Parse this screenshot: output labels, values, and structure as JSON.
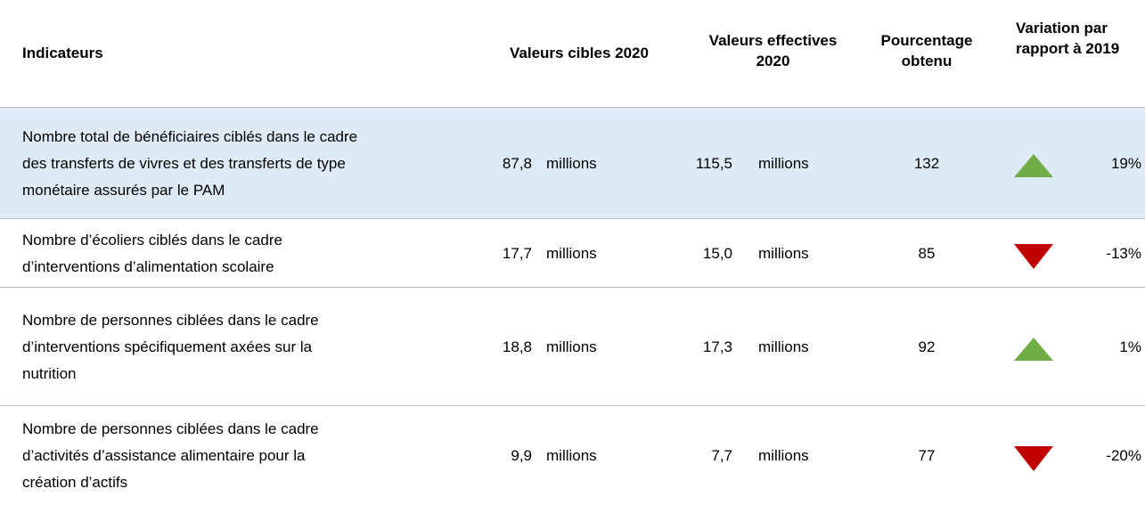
{
  "table": {
    "header": [
      "Indicateurs",
      "Valeurs cibles 2020",
      "Valeurs effectives 2020",
      "Pourcentage obtenu",
      "Variation par rapport à 2019"
    ],
    "rows": [
      {
        "indicator": [
          "Nombre total de bénéficiaires ciblés dans le cadre",
          "des transferts de vivres et des transferts de type",
          "monétaire assurés par le PAM"
        ],
        "target": "87,8",
        "target_unit": "millions",
        "actual": "115,5",
        "actual_unit": "millions",
        "percent": "132",
        "variation": "19%"
      },
      {
        "indicator": [
          "Nombre d’écoliers ciblés dans le cadre",
          "d’interventions d’alimentation scolaire"
        ],
        "target": "17,7",
        "target_unit": "millions",
        "actual": "15,0",
        "actual_unit": "millions",
        "percent": "85",
        "variation": "-13%"
      },
      {
        "indicator": [
          "Nombre de personnes ciblées dans le cadre",
          "d’interventions spécifiquement axées sur la",
          "nutrition"
        ],
        "target": "18,8",
        "target_unit": "millions",
        "actual": "17,3",
        "actual_unit": "millions",
        "percent": "92",
        "variation": "1%"
      },
      {
        "indicator": [
          "Nombre de personnes ciblées dans le cadre",
          "d’activités d’assistance alimentaire pour la",
          "création d’actifs"
        ],
        "target": "9,9",
        "target_unit": "millions",
        "actual": "7,7",
        "actual_unit": "millions",
        "percent": "77",
        "variation": "-20%"
      }
    ]
  }
}
